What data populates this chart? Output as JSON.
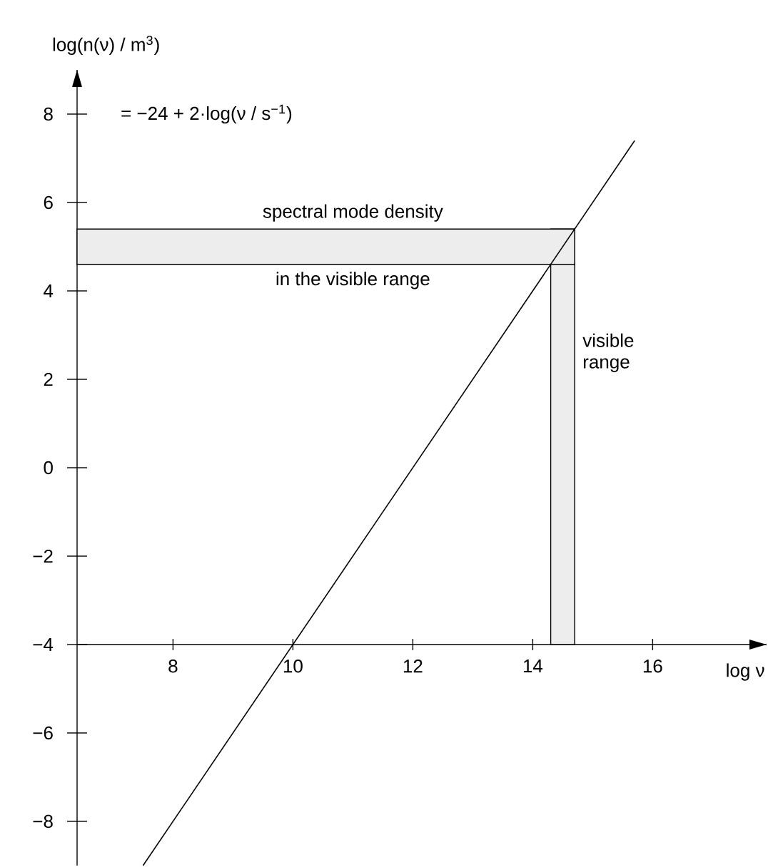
{
  "chart_data": {
    "type": "line",
    "xlabel": "log ν",
    "ylabel": "log(n(ν) / m$^{3}$)",
    "x": [
      7.5,
      15.7
    ],
    "series": [
      {
        "values": [
          -9,
          7.4
        ],
        "color": "#000000",
        "line_style": "solid"
      }
    ],
    "xlim": [
      6.4,
      17.9
    ],
    "ylim": [
      -9,
      9
    ],
    "xticks": [
      8,
      10,
      12,
      14,
      16
    ],
    "yticks": [
      8,
      6,
      4,
      2,
      0,
      {
        "value": -2,
        "label": "−2"
      },
      {
        "value": -4,
        "label": "−4"
      },
      {
        "value": -6,
        "label": "−6"
      },
      {
        "value": -8,
        "label": "−8"
      }
    ],
    "bands": [
      {
        "axis": "x",
        "from": 14.3,
        "to": 14.7,
        "label": "visible range",
        "color": "#ededed"
      },
      {
        "axis": "y",
        "from": 4.6,
        "to": 5.4,
        "color": "#ededed"
      }
    ],
    "annotations": [
      "= −24 + 2·log(ν / s$^{−1}$)",
      {
        "text": "spectral mode density",
        "x": 11,
        "y": 5.4
      },
      {
        "text": "in the visible range",
        "x": 11,
        "y": 4.6
      }
    ]
  }
}
